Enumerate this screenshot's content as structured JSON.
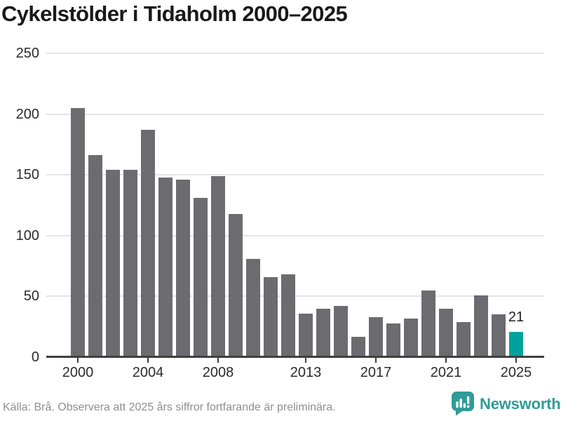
{
  "title": "Cykelstölder i Tidaholm 2000–2025",
  "footer": {
    "source_note": "Källa: Brå. Observera att 2025 års siffror fortfarande är preliminära."
  },
  "branding": {
    "logo_text": "Newsworthy",
    "logo_icon": "newsworthy-speech-bubble-bar-chart-icon",
    "logo_color": "#2f9c98"
  },
  "colors": {
    "bar": "#6c6c70",
    "highlight": "#00a39c",
    "grid": "#e4e4e4",
    "axis": "#404040",
    "title_text": "#191919",
    "tick_text": "#2b2b2b",
    "footer_text": "#8e8e94"
  },
  "chart_data": {
    "type": "bar",
    "title": "Cykelstölder i Tidaholm 2000–2025",
    "x": [
      2000,
      2001,
      2002,
      2003,
      2004,
      2005,
      2006,
      2007,
      2008,
      2009,
      2010,
      2011,
      2012,
      2013,
      2014,
      2015,
      2016,
      2017,
      2018,
      2019,
      2020,
      2021,
      2022,
      2023,
      2024,
      2025
    ],
    "values": [
      205,
      166,
      154,
      154,
      187,
      148,
      146,
      131,
      149,
      118,
      81,
      66,
      68,
      36,
      40,
      42,
      17,
      33,
      28,
      32,
      55,
      40,
      29,
      51,
      35,
      21
    ],
    "bar_color": "#6c6c70",
    "highlight": {
      "year": 2025,
      "value": 21,
      "label": "21",
      "color": "#00a39c"
    },
    "ylim": [
      0,
      250
    ],
    "yticks": [
      0,
      50,
      100,
      150,
      200,
      250
    ],
    "xticks": [
      2000,
      2004,
      2008,
      2013,
      2017,
      2021,
      2025
    ],
    "grid": "horizontal-only",
    "legend": "none"
  }
}
